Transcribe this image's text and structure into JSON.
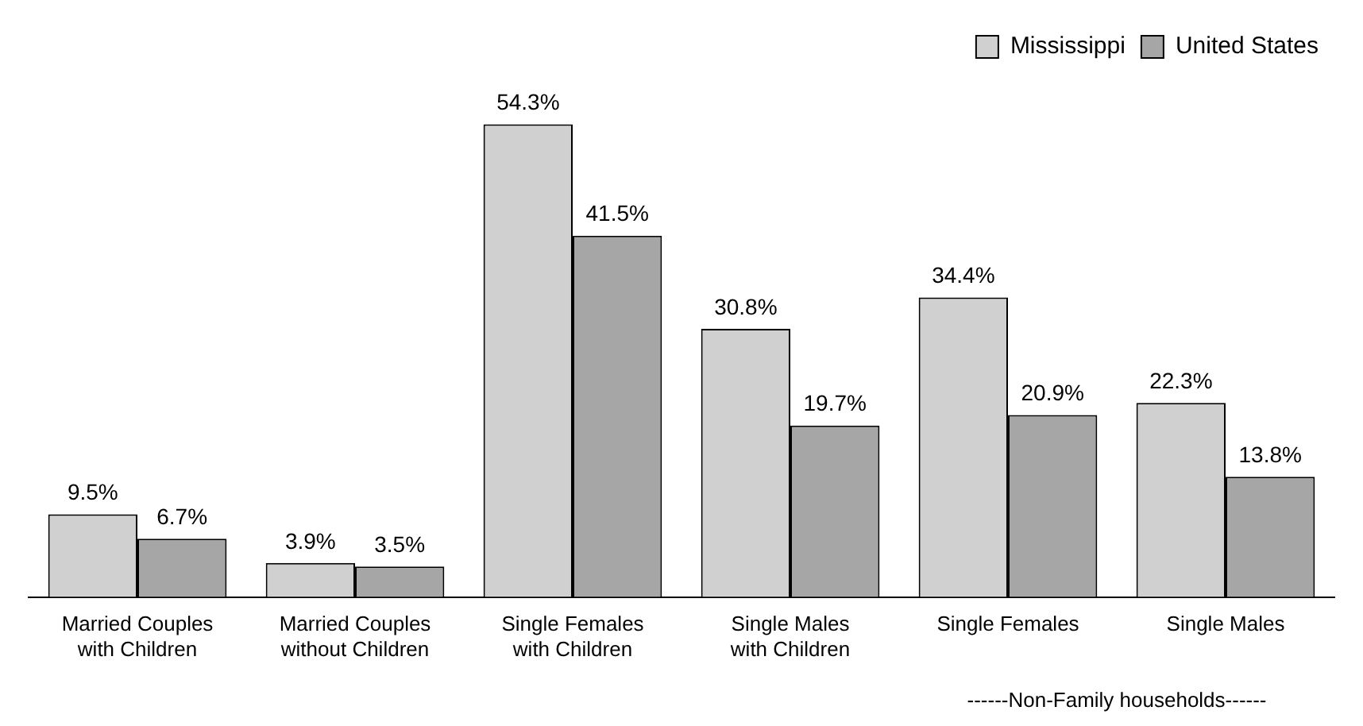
{
  "chart_data": {
    "type": "bar",
    "categories": [
      "Married Couples\nwith Children",
      "Married Couples\nwithout Children",
      "Single Females\nwith Children",
      "Single Males\nwith Children",
      "Single Females",
      "Single Males"
    ],
    "series": [
      {
        "name": "Mississippi",
        "color": "#d0d0d0",
        "values": [
          9.5,
          3.9,
          54.3,
          30.8,
          34.4,
          22.3
        ],
        "value_labels": [
          "9.5%",
          "3.9%",
          "54.3%",
          "30.8%",
          "34.4%",
          "22.3%"
        ]
      },
      {
        "name": "United States",
        "color": "#a6a6a6",
        "values": [
          6.7,
          3.5,
          41.5,
          19.7,
          20.9,
          13.8
        ],
        "value_labels": [
          "6.7%",
          "3.5%",
          "41.5%",
          "19.7%",
          "20.9%",
          "13.8%"
        ]
      }
    ],
    "annotations": [
      "------Non-Family households------"
    ],
    "legend": "top right",
    "grid": false
  }
}
